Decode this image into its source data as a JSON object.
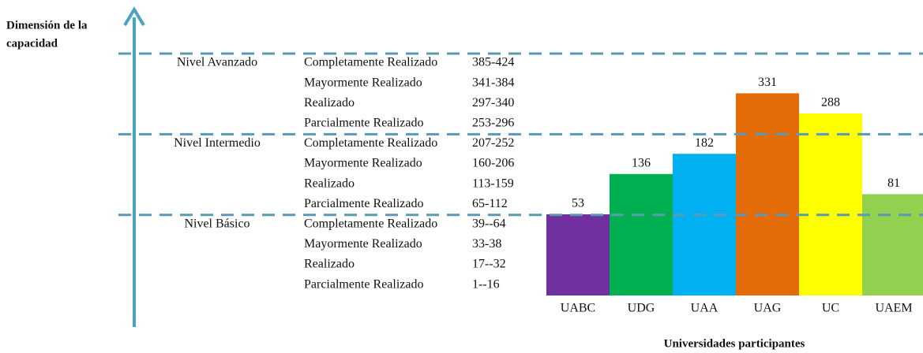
{
  "y_label": [
    "Dimensión de la",
    "capacidad"
  ],
  "levels": [
    {
      "name": "Nivel Avanzado",
      "rows": [
        {
          "label": "Completamente Realizado",
          "range": "385-424"
        },
        {
          "label": "Mayormente Realizado",
          "range": "341-384"
        },
        {
          "label": "Realizado",
          "range": "297-340"
        },
        {
          "label": "Parcialmente Realizado",
          "range": "253-296"
        }
      ]
    },
    {
      "name": "Nivel Intermedio",
      "rows": [
        {
          "label": "Completamente Realizado",
          "range": "207-252"
        },
        {
          "label": "Mayormente Realizado",
          "range": "160-206"
        },
        {
          "label": "Realizado",
          "range": "113-159"
        },
        {
          "label": "Parcialmente Realizado",
          "range": "65-112"
        }
      ]
    },
    {
      "name": "Nivel Básico",
      "rows": [
        {
          "label": "Completamente Realizado",
          "range": "39--64"
        },
        {
          "label": "Mayormente Realizado",
          "range": "33-38"
        },
        {
          "label": "Realizado",
          "range": "17--32"
        },
        {
          "label": "Parcialmente Realizado",
          "range": "1--16"
        }
      ]
    }
  ],
  "chart_data": {
    "type": "bar",
    "x_label": "Universidades participantes",
    "categories": [
      "UABC",
      "UDG",
      "UAA",
      "UAG",
      "UC",
      "UAEM"
    ],
    "values": [
      53,
      136,
      182,
      331,
      288,
      81
    ],
    "colors": [
      "#7030a0",
      "#00b050",
      "#00b0f0",
      "#e36c09",
      "#ffff00",
      "#92d050"
    ]
  }
}
